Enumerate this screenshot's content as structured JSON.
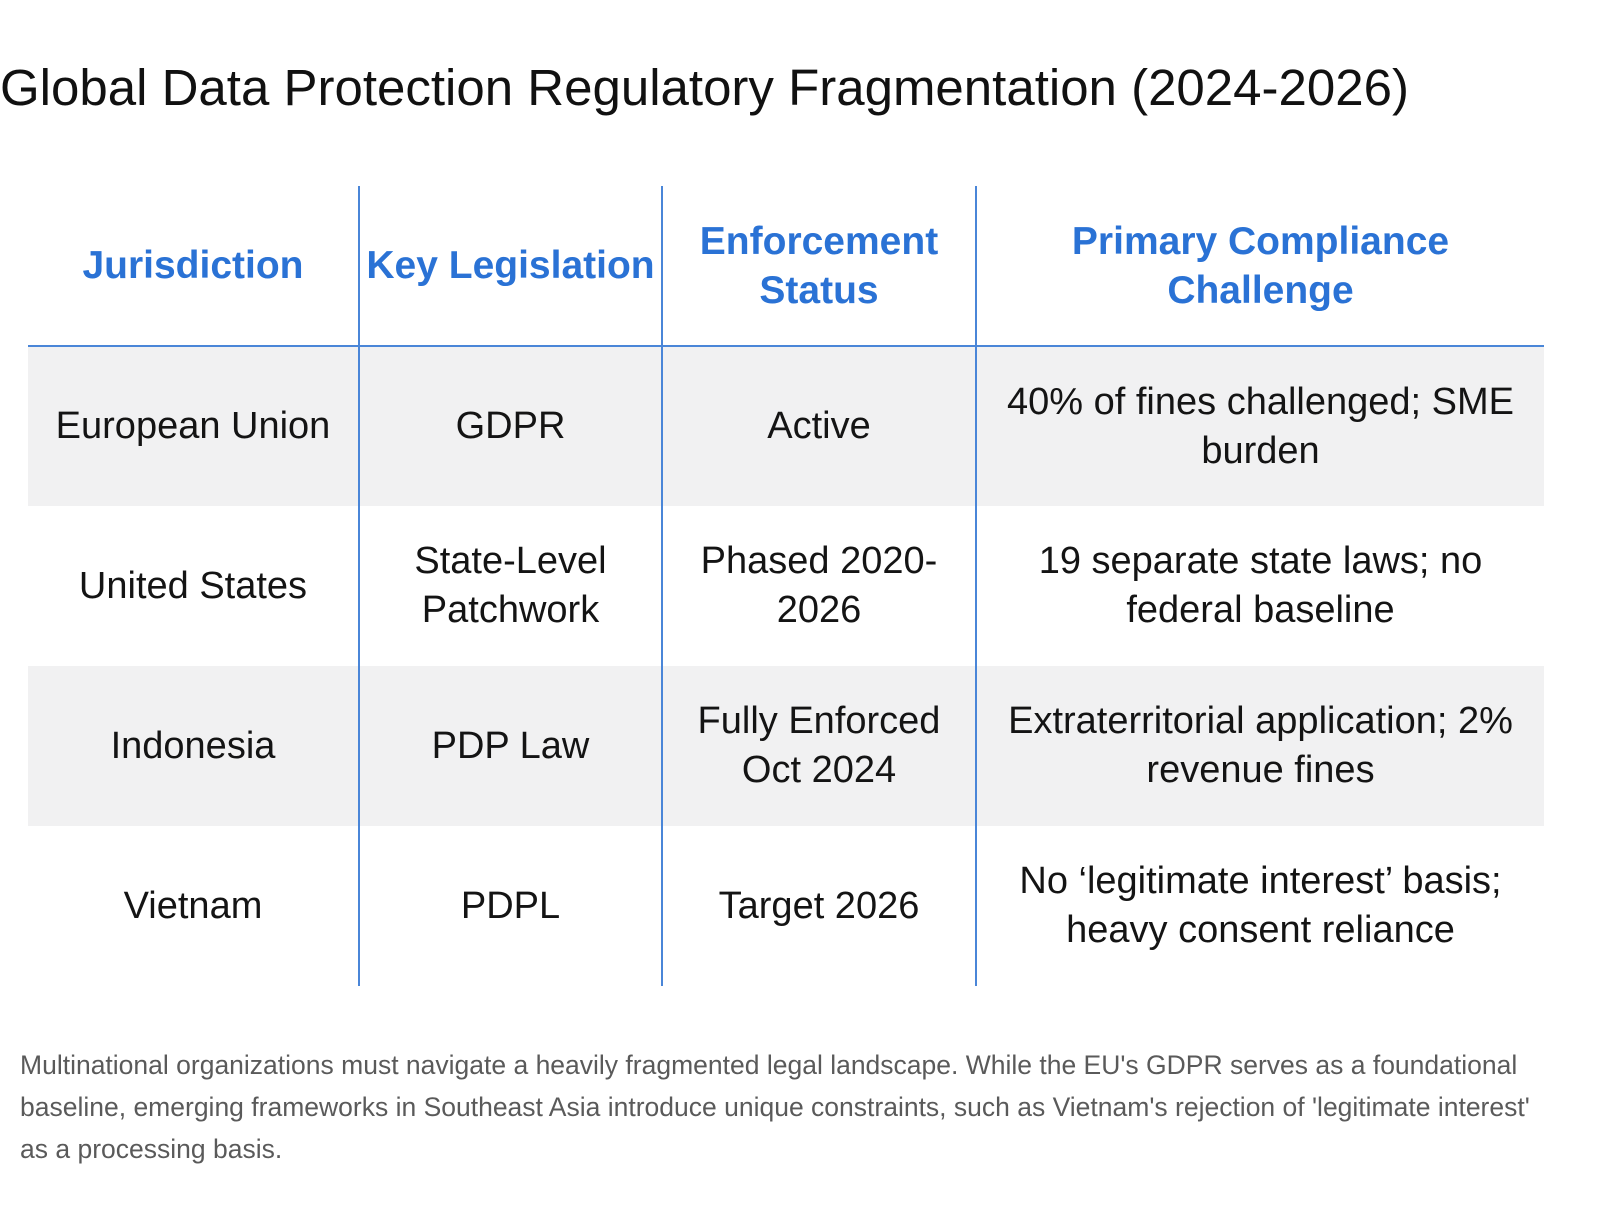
{
  "page": {
    "title": "Global Data Protection Regulatory Fragmentation (2024-2026)"
  },
  "table": {
    "headers": [
      "Jurisdiction",
      "Key Legislation",
      "Enforcement Status",
      "Primary Compliance Challenge"
    ],
    "rows": [
      {
        "jurisdiction": "European Union",
        "legislation": "GDPR",
        "status": "Active",
        "challenge": "40% of fines challenged; SME burden"
      },
      {
        "jurisdiction": "United States",
        "legislation": "State-Level Patchwork",
        "status": "Phased 2020-2026",
        "challenge": "19 separate state laws; no federal baseline"
      },
      {
        "jurisdiction": "Indonesia",
        "legislation": "PDP Law",
        "status": "Fully Enforced Oct 2024",
        "challenge": "Extraterritorial application; 2% revenue fines"
      },
      {
        "jurisdiction": "Vietnam",
        "legislation": "PDPL",
        "status": "Target 2026",
        "challenge": "No ‘legitimate interest’ basis; heavy consent reliance"
      }
    ],
    "header_color": "#2a72d5",
    "rule_color": "#4a86d8",
    "shaded_row_color": "#f1f1f2"
  },
  "caption": {
    "text": "Multinational organizations must navigate a heavily fragmented legal landscape. While the EU's GDPR serves as a foundational baseline, emerging frameworks in Southeast Asia introduce unique constraints, such as Vietnam's rejection of 'legitimate interest' as a processing basis."
  }
}
